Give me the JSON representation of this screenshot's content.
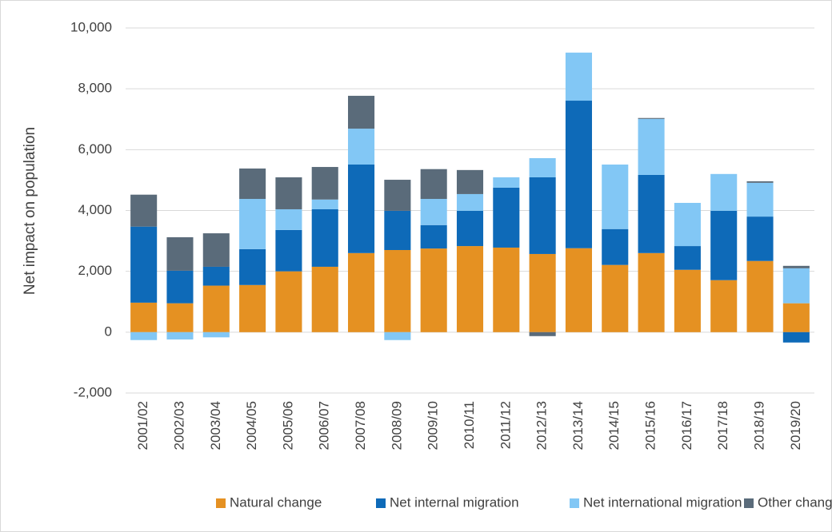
{
  "chart_data": {
    "type": "stacked_bar",
    "y_label": "Net impact on population",
    "categories": [
      "2001/02",
      "2002/03",
      "2003/04",
      "2004/05",
      "2005/06",
      "2006/07",
      "2007/08",
      "2008/09",
      "2009/10",
      "2010/11",
      "2011/12",
      "2012/13",
      "2013/14",
      "2014/15",
      "2015/16",
      "2016/17",
      "2017/18",
      "2018/19",
      "2019/20"
    ],
    "series": [
      {
        "name": "Natural change",
        "color": "#e59122",
        "values": [
          970,
          950,
          1530,
          1550,
          2000,
          2150,
          2600,
          2700,
          2750,
          2830,
          2780,
          2570,
          2760,
          2210,
          2600,
          2050,
          1710,
          2340,
          950
        ]
      },
      {
        "name": "Net internal migration",
        "color": "#0e6ab8",
        "values": [
          2500,
          1070,
          620,
          1180,
          1360,
          1890,
          2910,
          1290,
          770,
          1160,
          1970,
          2520,
          4850,
          1180,
          2570,
          780,
          2280,
          1460,
          -340
        ]
      },
      {
        "name": "Net international migration",
        "color": "#82c7f5",
        "values": [
          -260,
          -240,
          -170,
          1650,
          680,
          320,
          1180,
          -260,
          860,
          550,
          340,
          630,
          1580,
          2120,
          1840,
          1420,
          1210,
          1110,
          1150
        ]
      },
      {
        "name": "Other change",
        "color": "#5a6b7a",
        "values": [
          1050,
          1100,
          1100,
          1000,
          1050,
          1070,
          1080,
          1020,
          980,
          790,
          0,
          -130,
          0,
          0,
          30,
          0,
          0,
          50,
          80
        ]
      }
    ],
    "ylim": [
      -2000,
      10000
    ],
    "yticks": [
      {
        "value": -2000,
        "label": "-2,000"
      },
      0,
      {
        "value": 2000,
        "label": "2,000"
      },
      {
        "value": 4000,
        "label": "4,000"
      },
      {
        "value": 6000,
        "label": "6,000"
      },
      {
        "value": 8000,
        "label": "8,000"
      },
      {
        "value": 10000,
        "label": "10,000"
      }
    ],
    "grid": true,
    "legend": "bottom"
  }
}
